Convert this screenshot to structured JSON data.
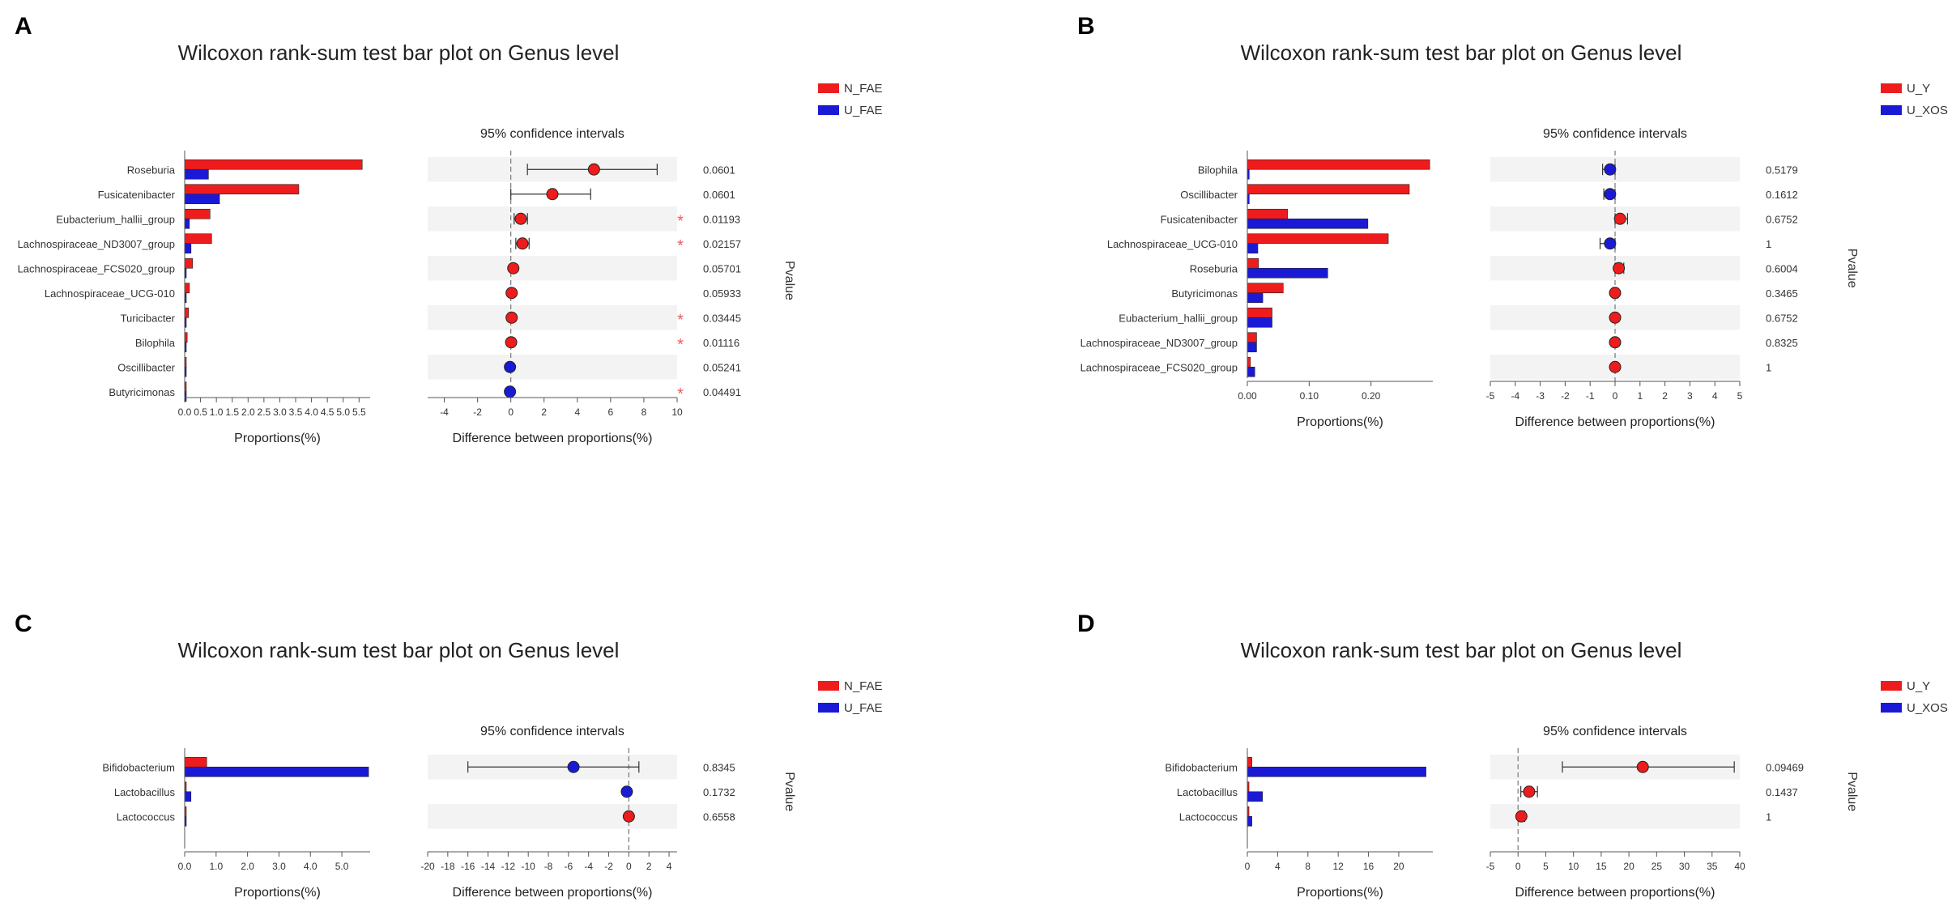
{
  "colors": {
    "red": "#ee1c1c",
    "blue": "#1a1ad6",
    "star": "#f05a5a",
    "stripe": "#f3f3f3",
    "axis": "#555555"
  },
  "chart_data": [
    {
      "type": "bar",
      "panel_label": "A",
      "title": "Wilcoxon rank-sum test bar plot on Genus level",
      "ci_title": "95% confidence intervals",
      "pvalue_label": "Pvalue",
      "xlabel": "Proportions(%)",
      "diff_xlabel": "Difference between proportions(%)",
      "legend": [
        {
          "name": "N_FAE",
          "color": "red"
        },
        {
          "name": "U_FAE",
          "color": "blue"
        }
      ],
      "categories": [
        "Roseburia",
        "Fusicatenibacter",
        "Eubacterium_hallii_group",
        "Lachnospiraceae_ND3007_group",
        "Lachnospiraceae_FCS020_group",
        "Lachnospiraceae_UCG-010",
        "Turicibacter",
        "Bilophila",
        "Oscillibacter",
        "Butyricimonas"
      ],
      "series": [
        {
          "name": "N_FAE",
          "values": [
            5.6,
            3.6,
            0.8,
            0.85,
            0.25,
            0.15,
            0.12,
            0.08,
            0.05,
            0.03
          ]
        },
        {
          "name": "U_FAE",
          "values": [
            0.75,
            1.1,
            0.15,
            0.2,
            0.05,
            0.05,
            0.03,
            0.02,
            0.03,
            0.01
          ]
        }
      ],
      "prop_ticks": [
        "0.0",
        "0.5",
        "1.0",
        "1.5",
        "2.0",
        "2.5",
        "3.0",
        "3.5",
        "4.0",
        "4.5",
        "5.0",
        "5.5"
      ],
      "prop_tick_values": [
        0,
        0.5,
        1,
        1.5,
        2,
        2.5,
        3,
        3.5,
        4,
        4.5,
        5,
        5.5
      ],
      "prop_xlim": [
        0,
        5.85
      ],
      "diff": [
        {
          "mean": 5.0,
          "low": 1.0,
          "high": 8.8
        },
        {
          "mean": 2.5,
          "low": 0.0,
          "high": 4.8
        },
        {
          "mean": 0.6,
          "low": 0.2,
          "high": 1.0
        },
        {
          "mean": 0.7,
          "low": 0.3,
          "high": 1.1
        },
        {
          "mean": 0.15,
          "low": 0.15,
          "high": 0.15
        },
        {
          "mean": 0.05,
          "low": 0.05,
          "high": 0.05
        },
        {
          "mean": 0.05,
          "low": 0.05,
          "high": 0.05
        },
        {
          "mean": 0.02,
          "low": 0.02,
          "high": 0.02
        },
        {
          "mean": -0.05,
          "low": -0.05,
          "high": -0.05
        },
        {
          "mean": -0.05,
          "low": -0.05,
          "high": -0.05
        }
      ],
      "diff_ticks": [
        "-4",
        "-2",
        "0",
        "2",
        "4",
        "6",
        "8",
        "10"
      ],
      "diff_tick_values": [
        -4,
        -2,
        0,
        2,
        4,
        6,
        8,
        10
      ],
      "diff_xlim": [
        -5,
        10
      ],
      "pvalues": [
        "0.0601",
        "0.0601",
        "0.01193",
        "0.02157",
        "0.05701",
        "0.05933",
        "0.03445",
        "0.01116",
        "0.05241",
        "0.04491"
      ],
      "significant": [
        false,
        false,
        true,
        true,
        false,
        false,
        true,
        true,
        false,
        true
      ],
      "star": "*"
    },
    {
      "type": "bar",
      "panel_label": "B",
      "title": "Wilcoxon rank-sum test bar plot on Genus level",
      "ci_title": "95% confidence intervals",
      "pvalue_label": "Pvalue",
      "xlabel": "Proportions(%)",
      "diff_xlabel": "Difference between proportions(%)",
      "legend": [
        {
          "name": "U_Y",
          "color": "red"
        },
        {
          "name": "U_XOS",
          "color": "blue"
        }
      ],
      "categories": [
        "Bilophila",
        "Oscillibacter",
        "Fusicatenibacter",
        "Lachnospiraceae_UCG-010",
        "Roseburia",
        "Butyricimonas",
        "Eubacterium_hallii_group",
        "Lachnospiraceae_ND3007_group",
        "Lachnospiraceae_FCS020_group"
      ],
      "series": [
        {
          "name": "U_Y",
          "values": [
            0.295,
            0.262,
            0.065,
            0.228,
            0.018,
            0.058,
            0.04,
            0.015,
            0.005
          ]
        },
        {
          "name": "U_XOS",
          "values": [
            0.003,
            0.003,
            0.195,
            0.017,
            0.13,
            0.025,
            0.04,
            0.015,
            0.012
          ]
        }
      ],
      "prop_ticks": [
        "0.00",
        "0.10",
        "0.20"
      ],
      "prop_tick_values": [
        0,
        0.1,
        0.2
      ],
      "prop_xlim": [
        0,
        0.3
      ],
      "diff": [
        {
          "mean": -0.2,
          "low": -0.5,
          "high": 0.0
        },
        {
          "mean": -0.2,
          "low": -0.45,
          "high": 0.0
        },
        {
          "mean": 0.2,
          "low": 0.0,
          "high": 0.5
        },
        {
          "mean": -0.2,
          "low": -0.6,
          "high": 0.0
        },
        {
          "mean": 0.15,
          "low": 0.0,
          "high": 0.35
        },
        {
          "mean": 0.0,
          "low": -0.1,
          "high": 0.1
        },
        {
          "mean": 0.0,
          "low": -0.05,
          "high": 0.05
        },
        {
          "mean": 0.0,
          "low": -0.05,
          "high": 0.05
        },
        {
          "mean": 0.0,
          "low": -0.05,
          "high": 0.05
        }
      ],
      "diff_ticks": [
        "-5",
        "-4",
        "-3",
        "-2",
        "-1",
        "0",
        "1",
        "2",
        "3",
        "4",
        "5"
      ],
      "diff_tick_values": [
        -5,
        -4,
        -3,
        -2,
        -1,
        0,
        1,
        2,
        3,
        4,
        5
      ],
      "diff_xlim": [
        -5,
        5
      ],
      "pvalues": [
        "0.5179",
        "0.1612",
        "0.6752",
        "1",
        "0.6004",
        "0.3465",
        "0.6752",
        "0.8325",
        "1"
      ],
      "significant": [
        false,
        false,
        false,
        false,
        false,
        false,
        false,
        false,
        false
      ],
      "star": "*"
    },
    {
      "type": "bar",
      "panel_label": "C",
      "title": "Wilcoxon rank-sum test bar plot on Genus level",
      "ci_title": "95% confidence intervals",
      "pvalue_label": "Pvalue",
      "xlabel": "Proportions(%)",
      "diff_xlabel": "Difference between proportions(%)",
      "legend": [
        {
          "name": "N_FAE",
          "color": "red"
        },
        {
          "name": "U_FAE",
          "color": "blue"
        }
      ],
      "categories": [
        "Bifidobacterium",
        "Lactobacillus",
        "Lactococcus"
      ],
      "series": [
        {
          "name": "N_FAE",
          "values": [
            0.7,
            0.02,
            0.01
          ]
        },
        {
          "name": "U_FAE",
          "values": [
            5.85,
            0.2,
            0.05
          ]
        }
      ],
      "prop_ticks": [
        "0.0",
        "1.0",
        "2.0",
        "3.0",
        "4.0",
        "5.0"
      ],
      "prop_tick_values": [
        0,
        1,
        2,
        3,
        4,
        5
      ],
      "prop_xlim": [
        0,
        5.9
      ],
      "diff": [
        {
          "mean": -5.5,
          "low": -16.0,
          "high": 1.0
        },
        {
          "mean": -0.2,
          "low": -0.2,
          "high": -0.2
        },
        {
          "mean": 0.0,
          "low": 0.0,
          "high": 0.0
        }
      ],
      "diff_ticks": [
        "-20",
        "-18",
        "-16",
        "-14",
        "-12",
        "-10",
        "-8",
        "-6",
        "-4",
        "-2",
        "0",
        "2",
        "4"
      ],
      "diff_tick_values": [
        -20,
        -18,
        -16,
        -14,
        -12,
        -10,
        -8,
        -6,
        -4,
        -2,
        0,
        2,
        4
      ],
      "diff_xlim": [
        -20,
        4.8
      ],
      "pvalues": [
        "0.8345",
        "0.1732",
        "0.6558"
      ],
      "significant": [
        false,
        false,
        false
      ],
      "star": "*"
    },
    {
      "type": "bar",
      "panel_label": "D",
      "title": "Wilcoxon rank-sum test bar plot on Genus level",
      "ci_title": "95% confidence intervals",
      "pvalue_label": "Pvalue",
      "xlabel": "Proportions(%)",
      "diff_xlabel": "Difference between proportions(%)",
      "legend": [
        {
          "name": "U_Y",
          "color": "red"
        },
        {
          "name": "U_XOS",
          "color": "blue"
        }
      ],
      "categories": [
        "Bifidobacterium",
        "Lactobacillus",
        "Lactococcus"
      ],
      "series": [
        {
          "name": "U_Y",
          "values": [
            0.6,
            0.05,
            0.02
          ]
        },
        {
          "name": "U_XOS",
          "values": [
            23.6,
            2.0,
            0.6
          ]
        }
      ],
      "prop_ticks": [
        "0",
        "4",
        "8",
        "12",
        "16",
        "20"
      ],
      "prop_tick_values": [
        0,
        4,
        8,
        12,
        16,
        20
      ],
      "prop_xlim": [
        0,
        24.5
      ],
      "diff": [
        {
          "mean": 22.5,
          "low": 8.0,
          "high": 39.0
        },
        {
          "mean": 2.0,
          "low": 0.5,
          "high": 3.5
        },
        {
          "mean": 0.6,
          "low": 0.2,
          "high": 1.2
        }
      ],
      "diff_ticks": [
        "-5",
        "0",
        "5",
        "10",
        "15",
        "20",
        "25",
        "30",
        "35",
        "40"
      ],
      "diff_tick_values": [
        -5,
        0,
        5,
        10,
        15,
        20,
        25,
        30,
        35,
        40
      ],
      "diff_xlim": [
        -5,
        40
      ],
      "pvalues": [
        "0.09469",
        "0.1437",
        "1"
      ],
      "significant": [
        false,
        false,
        false
      ],
      "star": "*"
    }
  ]
}
